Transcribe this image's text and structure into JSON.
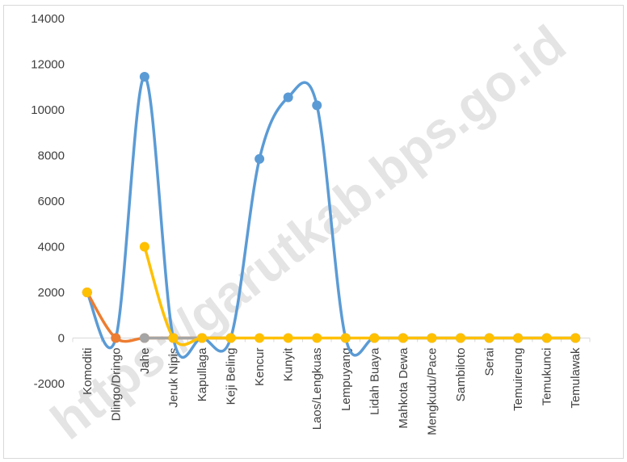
{
  "chart_data": {
    "type": "line",
    "categories": [
      "Komoditi",
      "Dlingo/Dringo",
      "Jahe",
      "Jeruk Nipis",
      "Kapullaga",
      "Keji Beling",
      "Kencur",
      "Kunyit",
      "Laos/Lengkuas",
      "Lempuyang",
      "Lidah Buaya",
      "Mahkota Dewa",
      "Mengkudu/Pace",
      "Sambiloto",
      "Serai",
      "Temuireung",
      "Temukunci",
      "Temulawak"
    ],
    "ylim": [
      -2000,
      14000
    ],
    "yticks": [
      -2000,
      0,
      2000,
      4000,
      6000,
      8000,
      10000,
      12000,
      14000
    ],
    "smoothed": true,
    "grid": false,
    "legend": "none",
    "series": [
      {
        "color": "#5b9bd5",
        "values": [
          2000,
          0,
          11450,
          0,
          0,
          0,
          7850,
          10550,
          10200,
          0,
          0,
          0,
          0,
          0,
          0,
          0,
          0,
          0
        ]
      },
      {
        "color": "#ed7d31",
        "values": [
          2000,
          0,
          0,
          0,
          0,
          0,
          null,
          null,
          null,
          null,
          null,
          null,
          null,
          null,
          null,
          null,
          null,
          null
        ]
      },
      {
        "color": "#a5a5a5",
        "values": [
          null,
          null,
          0,
          0,
          0,
          0,
          null,
          null,
          null,
          null,
          null,
          null,
          null,
          null,
          null,
          null,
          null,
          null
        ]
      },
      {
        "color": "#ffc000",
        "values": [
          2000,
          null,
          4000,
          0,
          0,
          0,
          0,
          0,
          0,
          0,
          0,
          0,
          0,
          0,
          0,
          0,
          0,
          0
        ]
      }
    ]
  },
  "watermark": "https://garutkab.bps.go.id"
}
